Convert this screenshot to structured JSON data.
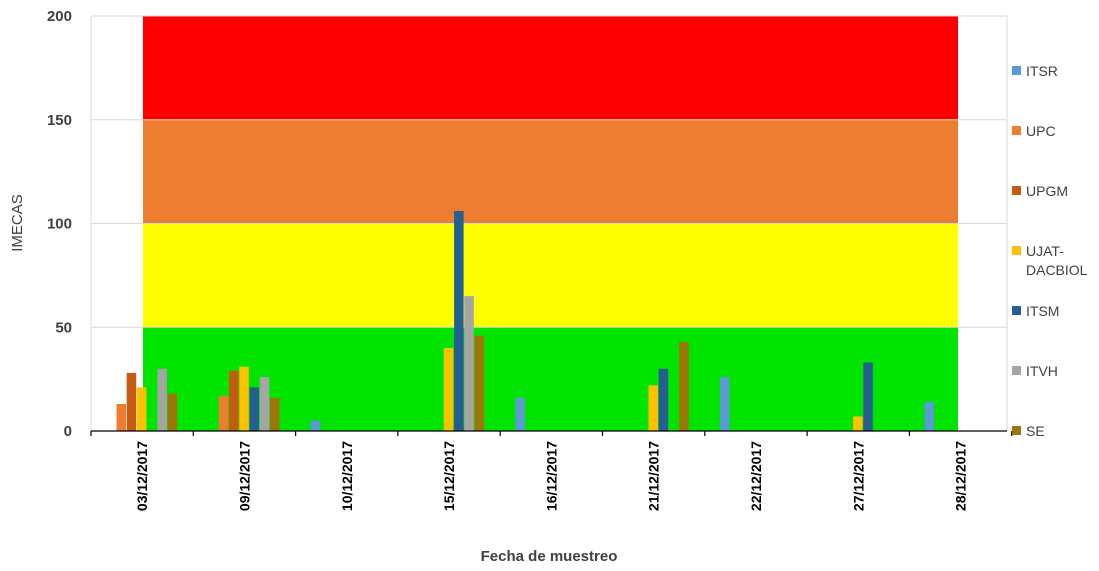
{
  "chart_data": {
    "type": "bar",
    "xlabel": "Fecha de muestreo",
    "ylabel": "IMECAS",
    "ylim": [
      0,
      200
    ],
    "yticks": [
      0,
      50,
      100,
      150,
      200
    ],
    "categories": [
      "03/12/2017",
      "09/12/2017",
      "10/12/2017",
      "15/12/2017",
      "16/12/2017",
      "21/12/2017",
      "22/12/2017",
      "27/12/2017",
      "28/12/2017"
    ],
    "bands": [
      {
        "from": 0,
        "to": 50,
        "color": "#00e400"
      },
      {
        "from": 50,
        "to": 100,
        "color": "#ffff00"
      },
      {
        "from": 100,
        "to": 150,
        "color": "#ed7d31"
      },
      {
        "from": 150,
        "to": 200,
        "color": "#ff0000"
      }
    ],
    "series": [
      {
        "name": "ITSR",
        "color": "#5b9bd5",
        "values": [
          null,
          null,
          5,
          null,
          16,
          null,
          26,
          null,
          14
        ]
      },
      {
        "name": "UPC",
        "color": "#ed7d31",
        "values": [
          13,
          17,
          null,
          null,
          null,
          null,
          null,
          null,
          null
        ]
      },
      {
        "name": "UPGM",
        "color": "#c55a11",
        "values": [
          28,
          29,
          null,
          null,
          null,
          null,
          null,
          null,
          null
        ]
      },
      {
        "name": "UJAT-DACBIOL",
        "color": "#ffc000",
        "values": [
          21,
          31,
          null,
          40,
          null,
          22,
          null,
          7,
          null
        ]
      },
      {
        "name": "ITSM",
        "color": "#255e91",
        "values": [
          null,
          21,
          null,
          106,
          null,
          30,
          null,
          33,
          null
        ]
      },
      {
        "name": "ITVH",
        "color": "#a5a5a5",
        "values": [
          30,
          26,
          null,
          65,
          null,
          null,
          null,
          null,
          null
        ]
      },
      {
        "name": "SE",
        "color": "#9e7508",
        "values": [
          18,
          16,
          null,
          46,
          null,
          43,
          null,
          null,
          null
        ]
      }
    ],
    "legend_position": "right",
    "grid": true
  }
}
